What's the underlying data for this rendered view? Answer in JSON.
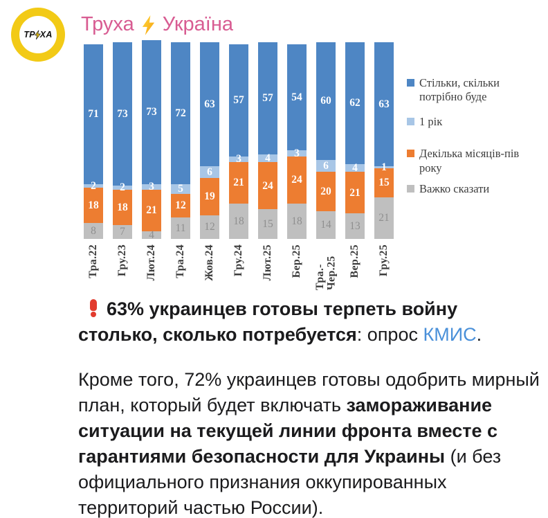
{
  "header": {
    "logo": {
      "left": "ТР",
      "right": "ХА"
    },
    "channel": {
      "first": "Труха",
      "second": "Україна"
    }
  },
  "chart_data": {
    "type": "bar",
    "stacked": true,
    "value_unit": "percent",
    "grid": false,
    "legend_position": "right",
    "categories": [
      "Тра.22",
      "Гру.23",
      "Лют.24",
      "Тра.24",
      "Жов.24",
      "Гру.24",
      "Лют.25",
      "Бер.25",
      "Тра.-Чер.25",
      "Вер.25",
      "Гру.25"
    ],
    "series": [
      {
        "name": "Стільки, скільки потрібно буде",
        "color": "#4e86c4",
        "label_style": "white",
        "values": [
          71,
          73,
          73,
          72,
          63,
          57,
          57,
          54,
          60,
          62,
          63
        ]
      },
      {
        "name": "1 рік",
        "color": "#a8c6e6",
        "label_style": "white",
        "values": [
          2,
          2,
          3,
          5,
          6,
          3,
          4,
          3,
          6,
          4,
          1
        ]
      },
      {
        "name": "Декілька місяців-пів року",
        "color": "#ed7d31",
        "label_style": "white",
        "values": [
          18,
          18,
          21,
          12,
          19,
          21,
          24,
          24,
          20,
          21,
          15
        ]
      },
      {
        "name": "Важко сказати",
        "color": "#bfbfbf",
        "label_style": "muted",
        "label_color": "#8f8f8f",
        "values": [
          8,
          7,
          4,
          11,
          12,
          18,
          15,
          18,
          14,
          13,
          21
        ]
      }
    ]
  },
  "post": {
    "p1": {
      "bold": "63% украинцев готовы терпеть войну столько, сколько потребуется",
      "mid": ": опрос ",
      "link": "КМИС",
      "tail": "."
    },
    "p2": {
      "before": "Кроме того, 72% украинцев готовы одобрить мирный план, который будет включать ",
      "bold": "замораживание ситуации на текущей линии фронта вместе с гарантиями безопасности для Украины",
      "after": " (и без официального признания оккупированных территорий частью России)."
    }
  },
  "colors": {
    "title_pink": "#d85c92",
    "link_blue": "#4a90d9",
    "logo_yellow": "#f2ca16",
    "exclamation_red": "#e23b2e",
    "text": "#1b1b1d"
  }
}
